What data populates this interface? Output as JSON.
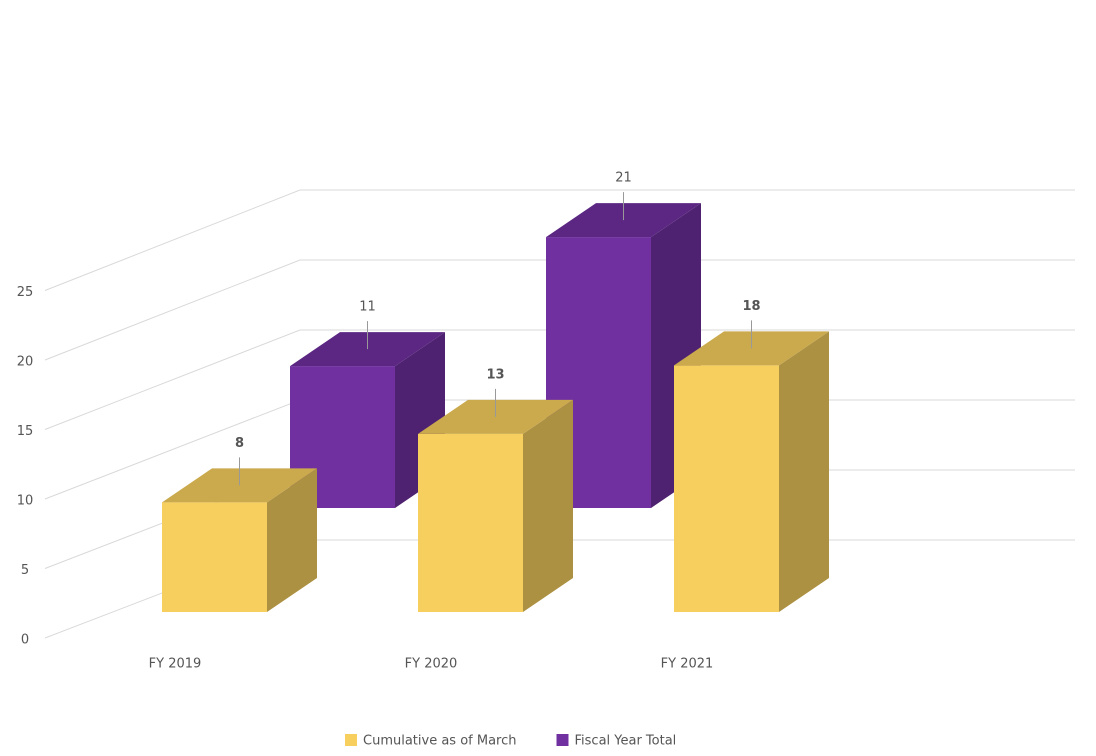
{
  "chart_data": {
    "type": "bar3d",
    "categories": [
      "FY 2019",
      "FY 2020",
      "FY 2021"
    ],
    "series": [
      {
        "name": "Cumulative as of March",
        "color": "#f7cf5e",
        "values": [
          8,
          13,
          18
        ]
      },
      {
        "name": "Fiscal Year Total",
        "color": "#7030a0",
        "values": [
          11,
          21,
          null
        ]
      }
    ],
    "ylim": [
      0,
      25
    ],
    "yticks": [
      0,
      5,
      10,
      15,
      20,
      25
    ],
    "grid": true,
    "legend": "bottom"
  }
}
